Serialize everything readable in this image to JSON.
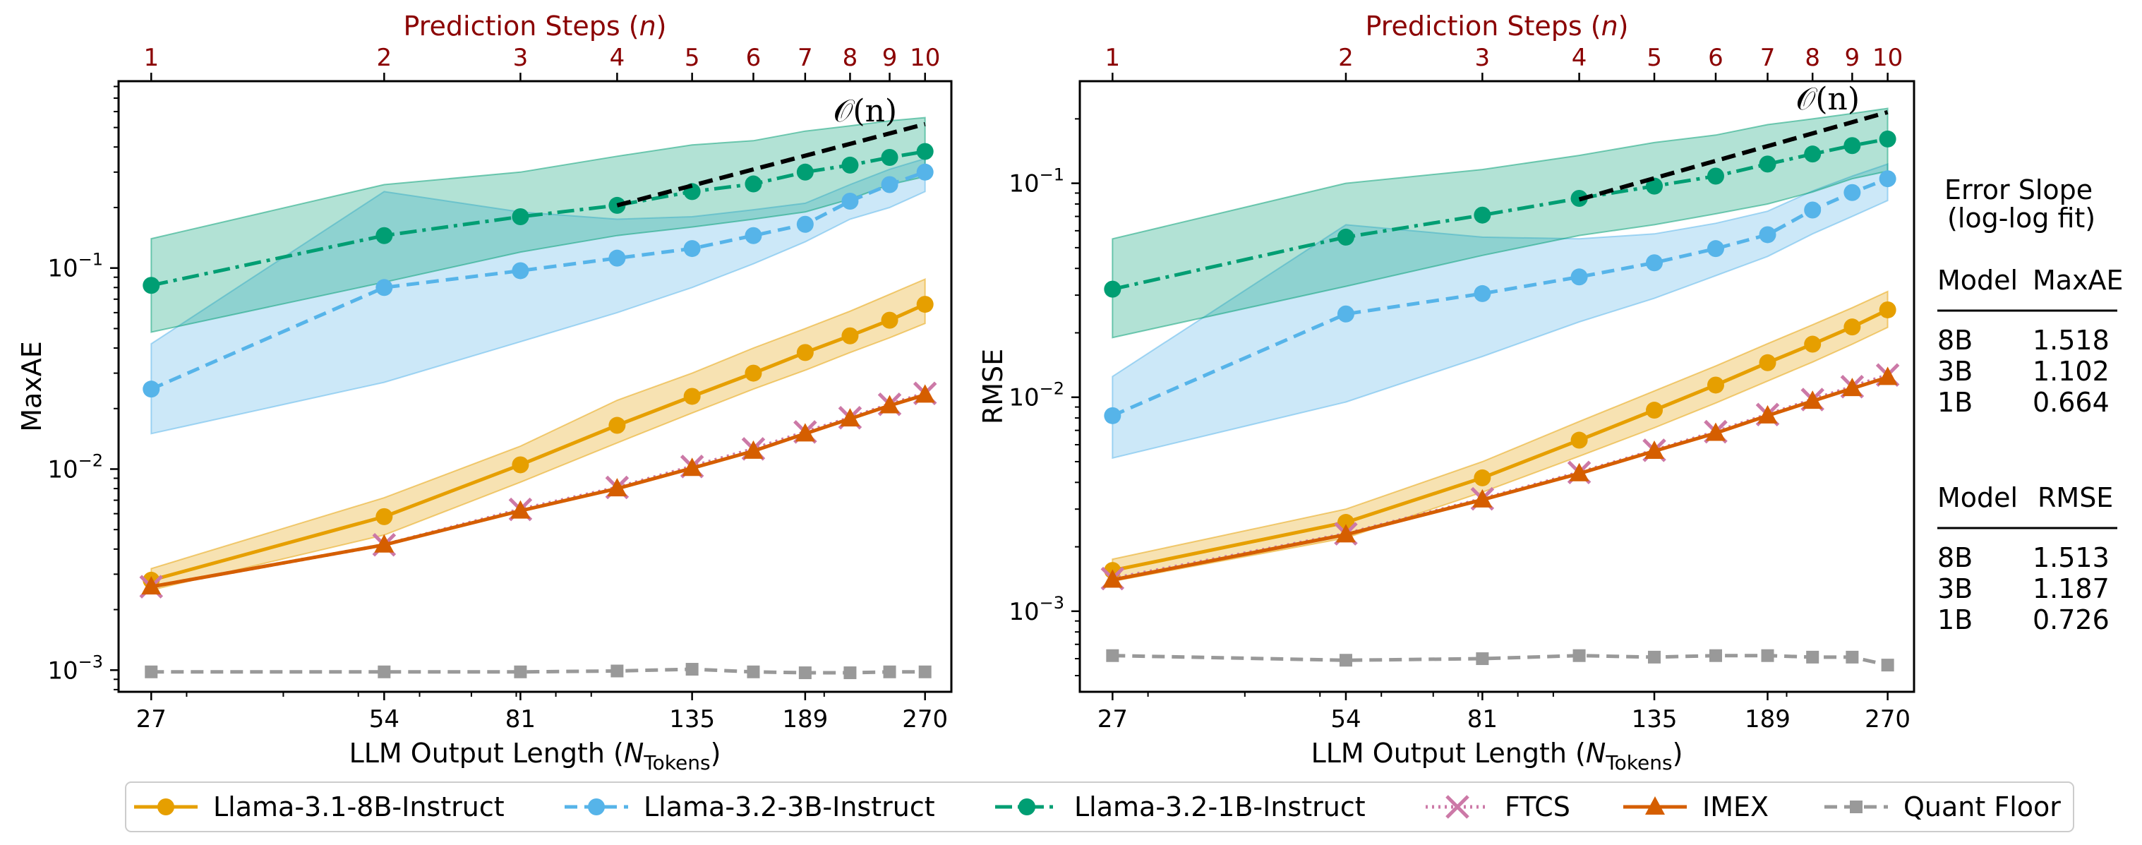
{
  "chart_data": {
    "type": "line",
    "x_scale": "log",
    "y_scale": "log",
    "top_axis_label_prefix": "Prediction Steps (",
    "top_axis_label_var": "n",
    "top_axis_label_suffix": ")",
    "top_ticks": [
      "1",
      "2",
      "3",
      "4",
      "5",
      "6",
      "7",
      "8",
      "9",
      "10"
    ],
    "x_tick_labels": [
      "27",
      "54",
      "81",
      "135",
      "189",
      "270"
    ],
    "x_tick_values": [
      27,
      54,
      81,
      135,
      189,
      270
    ],
    "xlabel_prefix": "LLM Output Length (",
    "xlabel_var": "N",
    "xlabel_sub": "Tokens",
    "xlabel_suffix": ")",
    "x": [
      27,
      54,
      81,
      108,
      135,
      162,
      189,
      216,
      243,
      270
    ],
    "xlim": [
      24.5,
      292
    ],
    "annotation": "𝒪(n)",
    "series_styles": [
      {
        "name": "Llama-3.1-8B-Instruct",
        "color": "#E69F00",
        "dash": "",
        "marker": "circle"
      },
      {
        "name": "Llama-3.2-3B-Instruct",
        "color": "#56B4E9",
        "dash": "18 10",
        "marker": "circle"
      },
      {
        "name": "Llama-3.2-1B-Instruct",
        "color": "#009E73",
        "dash": "24 8 5 8",
        "marker": "circle"
      },
      {
        "name": "FTCS",
        "color": "#CC79A7",
        "dash": "3 6",
        "marker": "x"
      },
      {
        "name": "IMEX",
        "color": "#D55E00",
        "dash": "",
        "marker": "triangle"
      },
      {
        "name": "Quant Floor",
        "color": "#999999",
        "dash": "18 10",
        "marker": "square"
      }
    ],
    "panels": [
      {
        "ylabel": "MaxAE",
        "ylim": [
          0.00078,
          0.85
        ],
        "y_tick_labels": [
          "10",
          "10",
          "10"
        ],
        "y_tick_exps": [
          "−3",
          "−2",
          "−1"
        ],
        "y_tick_values": [
          0.001,
          0.01,
          0.1
        ],
        "series": [
          {
            "name": "Llama-3.1-8B-Instruct",
            "values": [
              0.0028,
              0.0058,
              0.0105,
              0.0165,
              0.023,
              0.03,
              0.038,
              0.046,
              0.055,
              0.066
            ],
            "band_lo": [
              0.0025,
              0.0047,
              0.0086,
              0.0135,
              0.019,
              0.025,
              0.031,
              0.038,
              0.045,
              0.053
            ],
            "band_hi": [
              0.0032,
              0.0072,
              0.013,
              0.022,
              0.03,
              0.04,
              0.05,
              0.061,
              0.074,
              0.088
            ]
          },
          {
            "name": "Llama-3.2-3B-Instruct",
            "values": [
              0.025,
              0.08,
              0.097,
              0.112,
              0.125,
              0.145,
              0.165,
              0.215,
              0.26,
              0.3
            ],
            "band_lo": [
              0.015,
              0.027,
              0.043,
              0.06,
              0.08,
              0.105,
              0.135,
              0.175,
              0.2,
              0.24
            ],
            "band_hi": [
              0.042,
              0.24,
              0.19,
              0.175,
              0.18,
              0.195,
              0.21,
              0.26,
              0.31,
              0.35
            ]
          },
          {
            "name": "Llama-3.2-1B-Instruct",
            "values": [
              0.082,
              0.145,
              0.18,
              0.205,
              0.24,
              0.262,
              0.3,
              0.325,
              0.355,
              0.38
            ],
            "band_lo": [
              0.048,
              0.085,
              0.12,
              0.145,
              0.16,
              0.175,
              0.19,
              0.22,
              0.26,
              0.285
            ],
            "band_hi": [
              0.14,
              0.26,
              0.3,
              0.36,
              0.41,
              0.43,
              0.48,
              0.51,
              0.54,
              0.56
            ]
          },
          {
            "name": "FTCS",
            "values": [
              0.0026,
              0.0042,
              0.0063,
              0.0081,
              0.0103,
              0.0126,
              0.0153,
              0.018,
              0.021,
              0.0238
            ]
          },
          {
            "name": "IMEX",
            "values": [
              0.0026,
              0.0042,
              0.0062,
              0.008,
              0.0101,
              0.0123,
              0.015,
              0.0178,
              0.0207,
              0.0234
            ]
          },
          {
            "name": "Quant Floor",
            "values": [
              0.00098,
              0.00098,
              0.00098,
              0.00099,
              0.00101,
              0.00098,
              0.00097,
              0.00097,
              0.00098,
              0.00098
            ]
          }
        ],
        "annot_line": [
          [
            108,
            0.205
          ],
          [
            270,
            0.52
          ]
        ]
      },
      {
        "ylabel": "RMSE",
        "ylim": [
          0.00042,
          0.3
        ],
        "y_tick_labels": [
          "10",
          "10",
          "10"
        ],
        "y_tick_exps": [
          "−3",
          "−2",
          "−1"
        ],
        "y_tick_values": [
          0.001,
          0.01,
          0.1
        ],
        "series": [
          {
            "name": "Llama-3.1-8B-Instruct",
            "values": [
              0.00155,
              0.0026,
              0.0042,
              0.0063,
              0.0087,
              0.0114,
              0.0145,
              0.0177,
              0.0213,
              0.0256
            ],
            "band_lo": [
              0.00138,
              0.0022,
              0.0036,
              0.0053,
              0.0072,
              0.0094,
              0.0119,
              0.0146,
              0.0177,
              0.0212
            ],
            "band_hi": [
              0.00175,
              0.003,
              0.005,
              0.0077,
              0.0107,
              0.014,
              0.0178,
              0.0218,
              0.0262,
              0.0312
            ]
          },
          {
            "name": "Llama-3.2-3B-Instruct",
            "values": [
              0.0082,
              0.0245,
              0.0305,
              0.0365,
              0.0425,
              0.0495,
              0.0575,
              0.075,
              0.0905,
              0.105
            ],
            "band_lo": [
              0.0052,
              0.0095,
              0.0155,
              0.0225,
              0.029,
              0.037,
              0.0455,
              0.058,
              0.07,
              0.083
            ],
            "band_hi": [
              0.0125,
              0.064,
              0.056,
              0.055,
              0.058,
              0.065,
              0.074,
              0.092,
              0.108,
              0.123
            ]
          },
          {
            "name": "Llama-3.2-1B-Instruct",
            "values": [
              0.032,
              0.056,
              0.071,
              0.085,
              0.097,
              0.108,
              0.123,
              0.137,
              0.15,
              0.161
            ],
            "band_lo": [
              0.019,
              0.033,
              0.046,
              0.057,
              0.064,
              0.072,
              0.08,
              0.091,
              0.105,
              0.114
            ],
            "band_hi": [
              0.055,
              0.1,
              0.116,
              0.135,
              0.155,
              0.168,
              0.188,
              0.2,
              0.212,
              0.224
            ]
          },
          {
            "name": "FTCS",
            "values": [
              0.00142,
              0.0023,
              0.00335,
              0.00445,
              0.00565,
              0.0069,
              0.0083,
              0.00975,
              0.0112,
              0.0127
            ]
          },
          {
            "name": "IMEX",
            "values": [
              0.0014,
              0.00228,
              0.00332,
              0.0044,
              0.0056,
              0.0068,
              0.0082,
              0.0096,
              0.011,
              0.0124
            ]
          },
          {
            "name": "Quant Floor",
            "values": [
              0.00062,
              0.00059,
              0.0006,
              0.00062,
              0.00061,
              0.00062,
              0.00062,
              0.00061,
              0.00061,
              0.00056
            ]
          }
        ],
        "annot_line": [
          [
            108,
            0.084
          ],
          [
            270,
            0.215
          ]
        ]
      }
    ],
    "legend": [
      "Llama-3.1-8B-Instruct",
      "Llama-3.2-3B-Instruct",
      "Llama-3.2-1B-Instruct",
      "FTCS",
      "IMEX",
      "Quant Floor"
    ],
    "side_table": {
      "title_line1": "Error Slope",
      "title_line2": "(log-log fit)",
      "tables": [
        {
          "header": [
            "Model",
            "MaxAE"
          ],
          "rows": [
            [
              "8B",
              "1.518"
            ],
            [
              "3B",
              "1.102"
            ],
            [
              "1B",
              "0.664"
            ]
          ]
        },
        {
          "header": [
            "Model",
            "RMSE"
          ],
          "rows": [
            [
              "8B",
              "1.513"
            ],
            [
              "3B",
              "1.187"
            ],
            [
              "1B",
              "0.726"
            ]
          ]
        }
      ]
    }
  }
}
